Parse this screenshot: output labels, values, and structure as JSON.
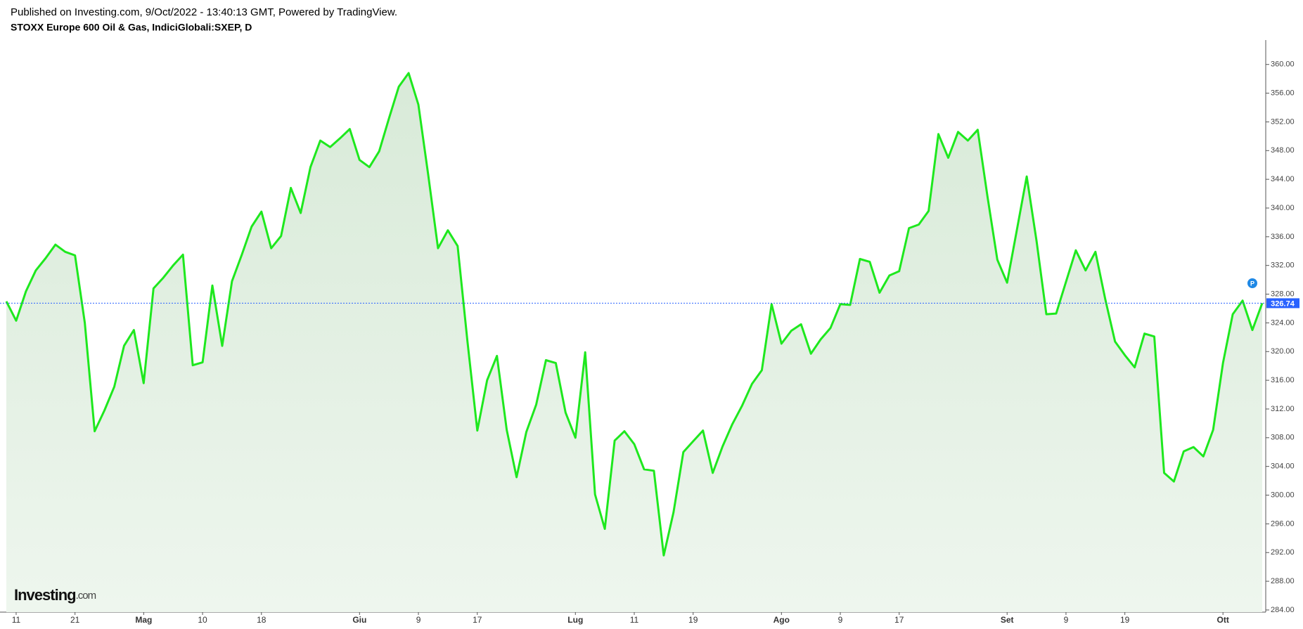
{
  "header": {
    "published": "Published on Investing.com, 9/Oct/2022 - 13:40:13 GMT, Powered by TradingView."
  },
  "chart_data": {
    "type": "area",
    "title": "STOXX Europe 600 Oil & Gas, IndiciGlobali:SXEP, D",
    "color": "#1ee81e",
    "categories": [
      null,
      "11",
      null,
      null,
      null,
      null,
      null,
      "21",
      null,
      null,
      null,
      null,
      null,
      null,
      "Mag",
      null,
      null,
      null,
      null,
      null,
      "10",
      null,
      null,
      null,
      null,
      null,
      "18",
      null,
      null,
      null,
      null,
      null,
      null,
      null,
      null,
      null,
      "Giu",
      null,
      null,
      null,
      null,
      null,
      "9",
      null,
      null,
      null,
      null,
      null,
      "17",
      null,
      null,
      null,
      null,
      null,
      null,
      null,
      null,
      null,
      "Lug",
      null,
      null,
      null,
      null,
      null,
      "11",
      null,
      null,
      null,
      null,
      null,
      "19",
      null,
      null,
      null,
      null,
      null,
      null,
      null,
      null,
      "Ago",
      null,
      null,
      null,
      null,
      null,
      "9",
      null,
      null,
      null,
      null,
      null,
      "17",
      null,
      null,
      null,
      null,
      null,
      null,
      null,
      null,
      null,
      null,
      "Set",
      null,
      null,
      null,
      null,
      null,
      "9",
      null,
      null,
      null,
      null,
      null,
      "19",
      null,
      null,
      null,
      null,
      null,
      null,
      null,
      null,
      null,
      "Ott",
      null,
      null,
      null,
      null
    ],
    "values": [
      327.0,
      324.3,
      328.4,
      331.3,
      333.0,
      334.9,
      333.9,
      333.4,
      324.0,
      308.9,
      311.8,
      315.1,
      320.8,
      323.0,
      315.6,
      328.8,
      330.3,
      332.0,
      333.5,
      318.1,
      318.5,
      329.2,
      320.8,
      329.8,
      333.5,
      337.4,
      339.5,
      334.4,
      336.1,
      342.8,
      339.3,
      345.7,
      349.4,
      348.5,
      349.7,
      351.0,
      346.7,
      345.7,
      347.9,
      352.5,
      356.9,
      358.8,
      354.4,
      344.6,
      334.4,
      336.9,
      334.7,
      321.4,
      309.0,
      316.0,
      319.4,
      309.1,
      302.5,
      308.8,
      312.6,
      318.8,
      318.4,
      311.5,
      308.0,
      319.9,
      300.1,
      295.3,
      307.6,
      308.9,
      307.1,
      303.6,
      303.4,
      291.6,
      297.6,
      306.0,
      307.5,
      309.0,
      303.1,
      306.8,
      309.9,
      312.5,
      315.5,
      317.4,
      326.6,
      321.1,
      322.9,
      323.8,
      319.7,
      321.7,
      323.3,
      326.6,
      326.5,
      332.9,
      332.5,
      328.2,
      330.6,
      331.2,
      337.2,
      337.7,
      339.6,
      350.3,
      347.0,
      350.6,
      349.4,
      350.9,
      341.6,
      332.8,
      329.6,
      337.0,
      344.4,
      335.4,
      325.2,
      325.3,
      329.7,
      334.1,
      331.3,
      333.9,
      327.3,
      321.4,
      319.5,
      317.8,
      322.5,
      322.1,
      303.1,
      301.9,
      306.1,
      306.7,
      305.4,
      309.1,
      318.4,
      325.2,
      327.1,
      323.0,
      326.74
    ],
    "ylim": [
      283.7,
      363.4
    ],
    "yticks": [
      {
        "value": 284,
        "label": "284.00"
      },
      {
        "value": 288,
        "label": "288.00"
      },
      {
        "value": 292,
        "label": "292.00"
      },
      {
        "value": 296,
        "label": "296.00"
      },
      {
        "value": 300,
        "label": "300.00"
      },
      {
        "value": 304,
        "label": "304.00"
      },
      {
        "value": 308,
        "label": "308.00"
      },
      {
        "value": 312,
        "label": "312.00"
      },
      {
        "value": 316,
        "label": "316.00"
      },
      {
        "value": 320,
        "label": "320.00"
      },
      {
        "value": 324,
        "label": "324.00"
      },
      {
        "value": 328,
        "label": "328.00"
      },
      {
        "value": 332,
        "label": "332.00"
      },
      {
        "value": 336,
        "label": "336.00"
      },
      {
        "value": 340,
        "label": "340.00"
      },
      {
        "value": 344,
        "label": "344.00"
      },
      {
        "value": 348,
        "label": "348.00"
      },
      {
        "value": 352,
        "label": "352.00"
      },
      {
        "value": 356,
        "label": "356.00"
      },
      {
        "value": 360,
        "label": "360.00"
      }
    ],
    "price_line": {
      "value": 326.74,
      "label": "326.74",
      "color": "#2962ff"
    },
    "badge": "P",
    "watermark": [
      "Investing",
      ".com"
    ],
    "grid": false
  }
}
